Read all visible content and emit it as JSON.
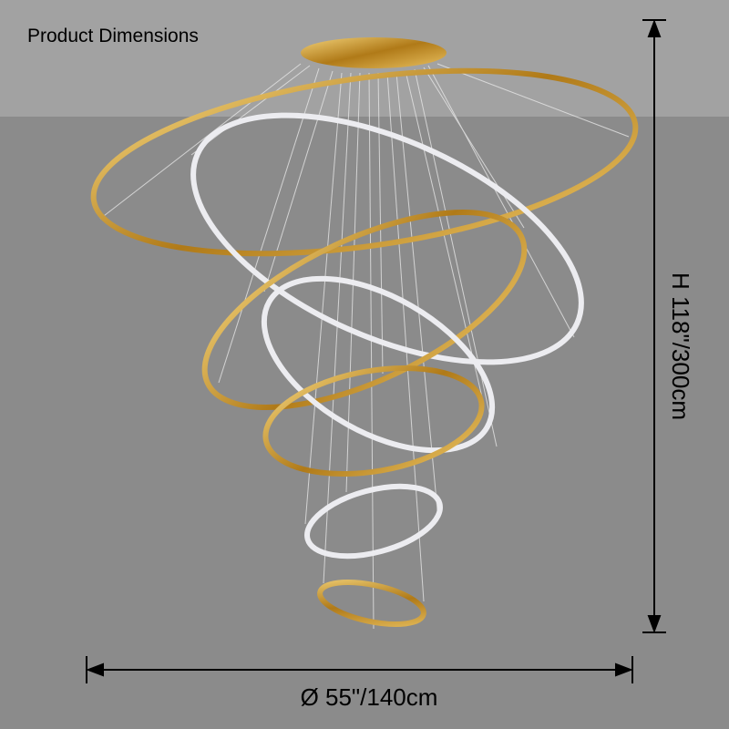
{
  "header": {
    "title": "Product Dimensions"
  },
  "dimensions": {
    "height": "H 118\"/300cm",
    "diameter": "Ø 55\"/140cm"
  }
}
